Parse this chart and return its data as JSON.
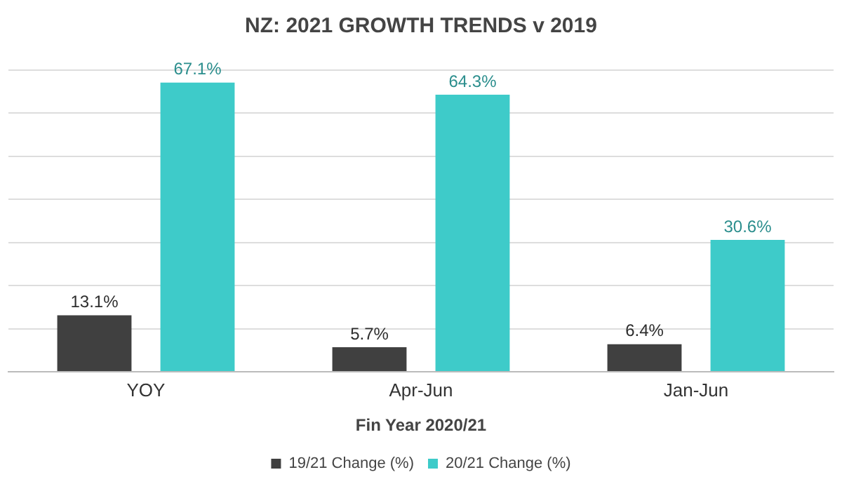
{
  "chart_data": {
    "type": "bar",
    "title": "NZ: 2021 GROWTH TRENDS v 2019",
    "xlabel": "Fin Year 2020/21",
    "categories": [
      "YOY",
      "Apr-Jun",
      "Jan-Jun"
    ],
    "series": [
      {
        "name": "19/21 Change (%)",
        "color": "#404040",
        "values": [
          13.1,
          5.7,
          6.4
        ],
        "value_labels": [
          "13.1%",
          "5.7%",
          "6.4%"
        ]
      },
      {
        "name": "20/21 Change (%)",
        "color": "#3ecbc9",
        "values": [
          67.1,
          64.3,
          30.6
        ],
        "value_labels": [
          "67.1%",
          "64.3%",
          "30.6%"
        ]
      }
    ],
    "tick_labels": "x",
    "grid": "y",
    "legend": "bottom"
  }
}
